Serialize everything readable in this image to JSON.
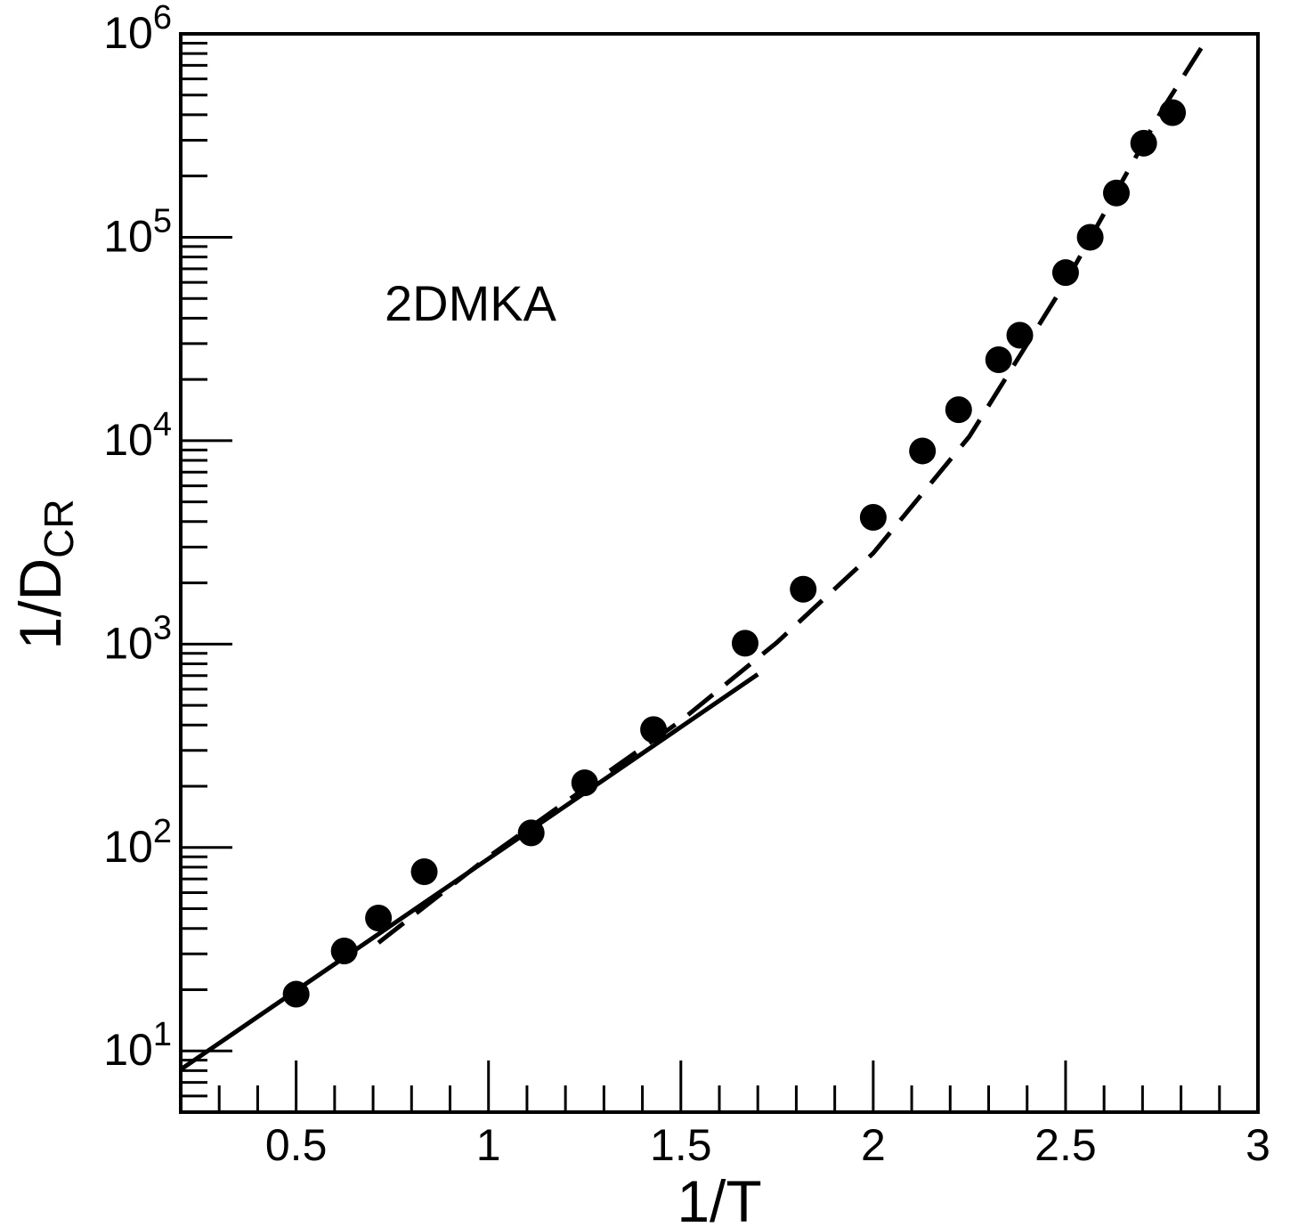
{
  "chart_data": {
    "type": "scatter",
    "title": "",
    "annotation": "2DMKA",
    "xlabel": "1/T",
    "ylabel": {
      "main": "1/D",
      "subscript": "CR"
    },
    "xlim": [
      0.2,
      3.0
    ],
    "ylim": [
      5,
      1000000
    ],
    "y_scale": "log",
    "grid": false,
    "x_ticks": [
      {
        "value": 0.5,
        "label": "0.5"
      },
      {
        "value": 1,
        "label": "1"
      },
      {
        "value": 1.5,
        "label": "1.5"
      },
      {
        "value": 2,
        "label": "2"
      },
      {
        "value": 2.5,
        "label": "2.5"
      },
      {
        "value": 3,
        "label": "3"
      }
    ],
    "y_ticks": [
      {
        "value": 10,
        "base": "10",
        "exp": "1"
      },
      {
        "value": 100,
        "base": "10",
        "exp": "2"
      },
      {
        "value": 1000,
        "base": "10",
        "exp": "3"
      },
      {
        "value": 10000,
        "base": "10",
        "exp": "4"
      },
      {
        "value": 100000,
        "base": "10",
        "exp": "5"
      },
      {
        "value": 1000000,
        "base": "10",
        "exp": "6"
      }
    ],
    "series": [
      {
        "style": "points",
        "color": "#000000",
        "x": [
          0.5,
          0.625,
          0.714,
          0.833,
          1.111,
          1.25,
          1.429,
          1.667,
          1.818,
          2.0,
          2.128,
          2.222,
          2.326,
          2.381,
          2.5,
          2.564,
          2.632,
          2.703,
          2.778
        ],
        "y": [
          19,
          31,
          45,
          76,
          118,
          208,
          380,
          1010,
          1860,
          4200,
          8900,
          14200,
          25000,
          33000,
          67000,
          100000,
          165000,
          290000,
          410000
        ]
      },
      {
        "style": "solid",
        "color": "#000000",
        "x": [
          0.2,
          1.7
        ],
        "y": [
          8.1,
          710
        ]
      },
      {
        "style": "dashed",
        "color": "#000000",
        "x": [
          0.714,
          1.0,
          1.25,
          1.5,
          1.75,
          2.0,
          2.25,
          2.5,
          2.75,
          2.87
        ],
        "y": [
          34,
          90,
          195,
          420,
          1020,
          2800,
          10500,
          60000,
          420000,
          960000
        ]
      }
    ]
  }
}
